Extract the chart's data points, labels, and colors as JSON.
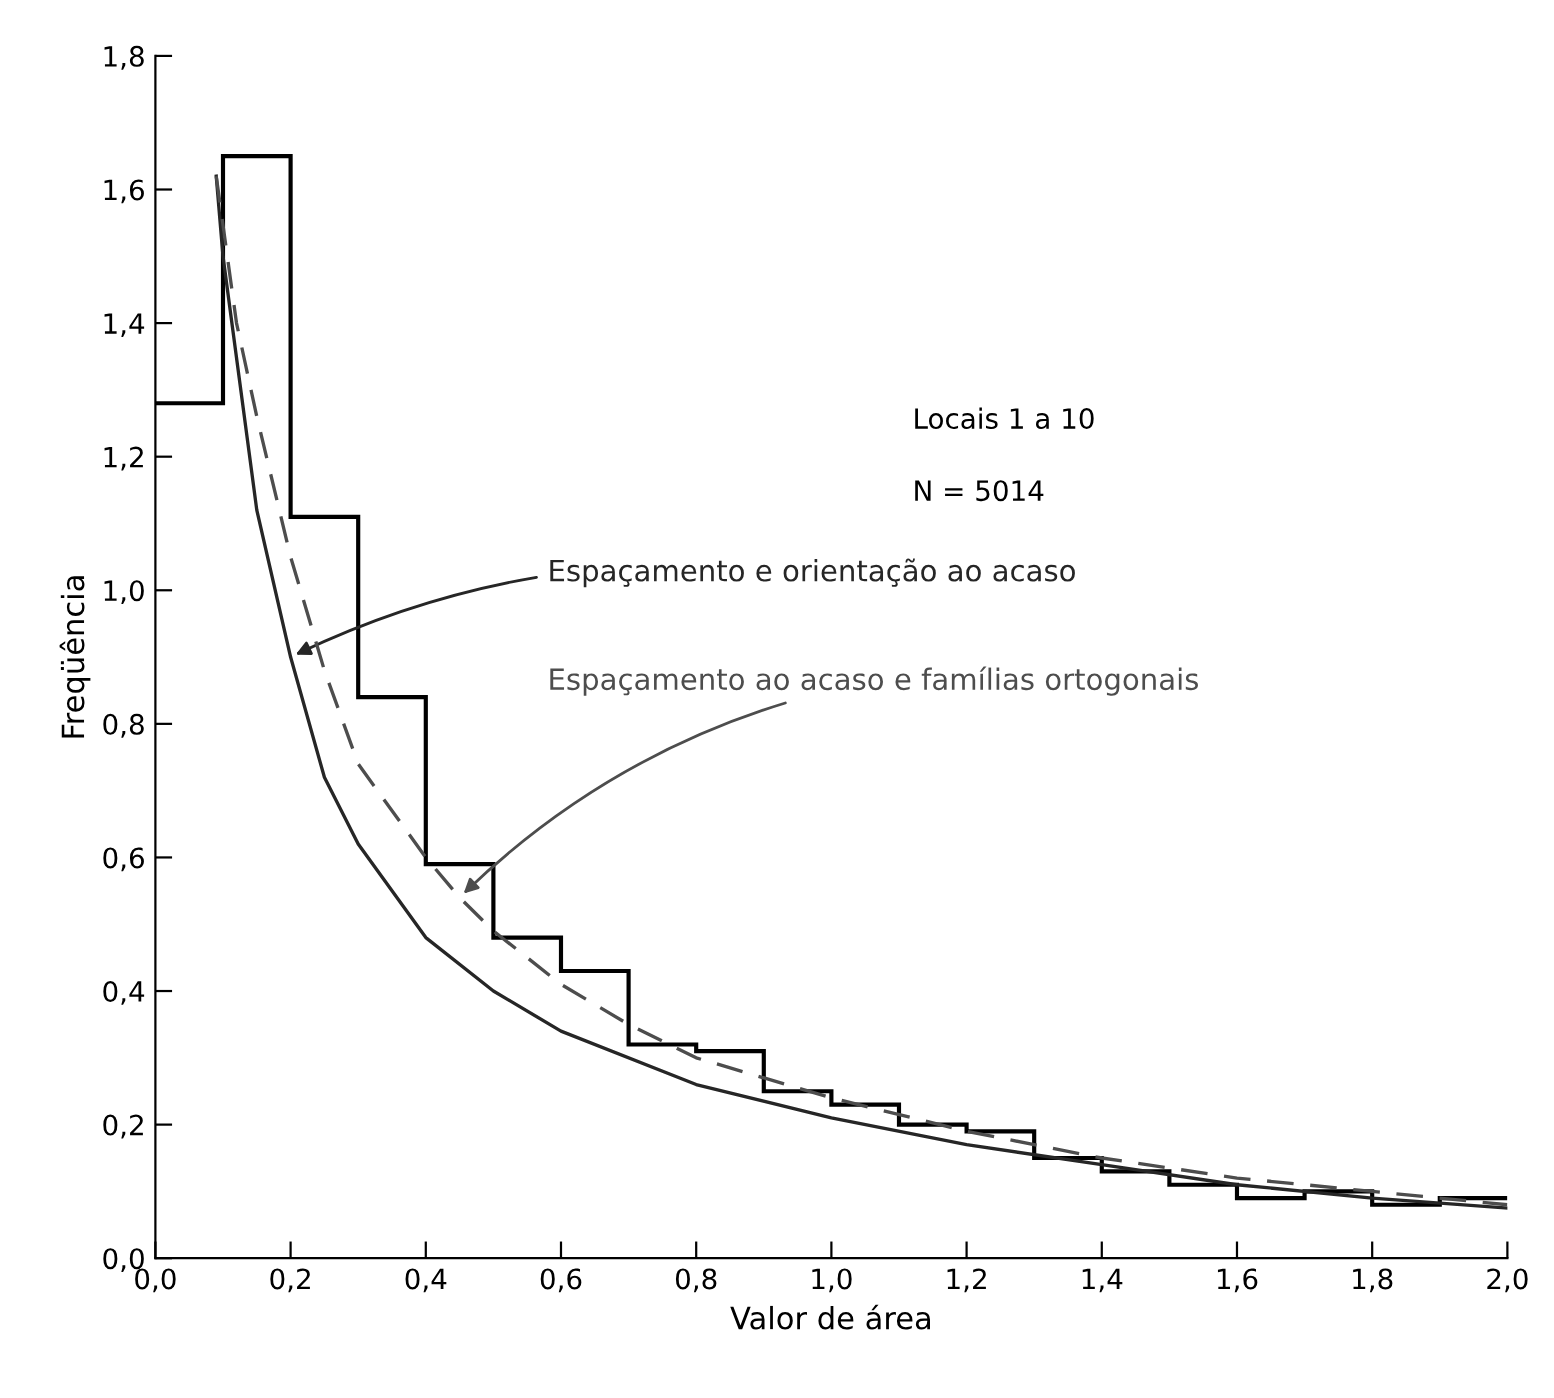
{
  "chart_data": {
    "type": "histogram",
    "xlabel": "Valor de área",
    "ylabel": "Freqüência",
    "bins": [
      0.0,
      0.1,
      0.2,
      0.3,
      0.4,
      0.5,
      0.6,
      0.7,
      0.8,
      0.9,
      1.0,
      1.1,
      1.2,
      1.3,
      1.4,
      1.5,
      1.6,
      1.7,
      1.8,
      1.9,
      2.0
    ],
    "values": [
      1.28,
      1.65,
      1.11,
      0.84,
      0.59,
      0.48,
      0.43,
      0.32,
      0.31,
      0.25,
      0.23,
      0.2,
      0.19,
      0.15,
      0.13,
      0.11,
      0.09,
      0.1,
      0.08,
      0.09
    ],
    "color": "#000000",
    "series": [
      {
        "type": "line",
        "name": "Espaçamento e orientação ao acaso",
        "color": "#262626",
        "line_style": "solid",
        "x": [
          0.09,
          0.1,
          0.15,
          0.2,
          0.25,
          0.3,
          0.4,
          0.5,
          0.6,
          0.8,
          1.0,
          1.2,
          1.4,
          1.6,
          1.8,
          2.0
        ],
        "values": [
          1.62,
          1.5,
          1.12,
          0.9,
          0.72,
          0.62,
          0.48,
          0.4,
          0.34,
          0.26,
          0.21,
          0.17,
          0.14,
          0.11,
          0.09,
          0.075
        ]
      },
      {
        "type": "line",
        "name": "Espaçamento ao acaso e famílias ortogonais",
        "color": "#4d4d4d",
        "line_style": "dashed",
        "x": [
          0.09,
          0.12,
          0.15,
          0.2,
          0.25,
          0.3,
          0.4,
          0.45,
          0.5,
          0.6,
          0.7,
          0.8,
          1.0,
          1.2,
          1.4,
          1.6,
          1.8,
          2.0
        ],
        "values": [
          1.62,
          1.4,
          1.26,
          1.05,
          0.88,
          0.74,
          0.6,
          0.54,
          0.49,
          0.41,
          0.35,
          0.3,
          0.24,
          0.19,
          0.15,
          0.12,
          0.1,
          0.08
        ]
      }
    ],
    "annotations": [
      "Locais 1 a 10",
      "N = 5014"
    ],
    "xlim": [
      0.0,
      2.0
    ],
    "ylim": [
      0.0,
      1.8
    ],
    "xticks": [
      {
        "value": 0.0,
        "label": "0,0"
      },
      {
        "value": 0.2,
        "label": "0,2"
      },
      {
        "value": 0.4,
        "label": "0,4"
      },
      {
        "value": 0.6,
        "label": "0,6"
      },
      {
        "value": 0.8,
        "label": "0,8"
      },
      {
        "value": 1.0,
        "label": "1,0"
      },
      {
        "value": 1.2,
        "label": "1,2"
      },
      {
        "value": 1.4,
        "label": "1,4"
      },
      {
        "value": 1.6,
        "label": "1,6"
      },
      {
        "value": 1.8,
        "label": "1,8"
      },
      {
        "value": 2.0,
        "label": "2,0"
      }
    ],
    "yticks": [
      {
        "value": 0.0,
        "label": "0,0"
      },
      {
        "value": 0.2,
        "label": "0,2"
      },
      {
        "value": 0.4,
        "label": "0,4"
      },
      {
        "value": 0.6,
        "label": "0,6"
      },
      {
        "value": 0.8,
        "label": "0,8"
      },
      {
        "value": 1.0,
        "label": "1,0"
      },
      {
        "value": 1.2,
        "label": "1,2"
      },
      {
        "value": 1.4,
        "label": "1,4"
      },
      {
        "value": 1.6,
        "label": "1,6"
      },
      {
        "value": 1.8,
        "label": "1,8"
      }
    ],
    "grid": false,
    "legend": false
  }
}
